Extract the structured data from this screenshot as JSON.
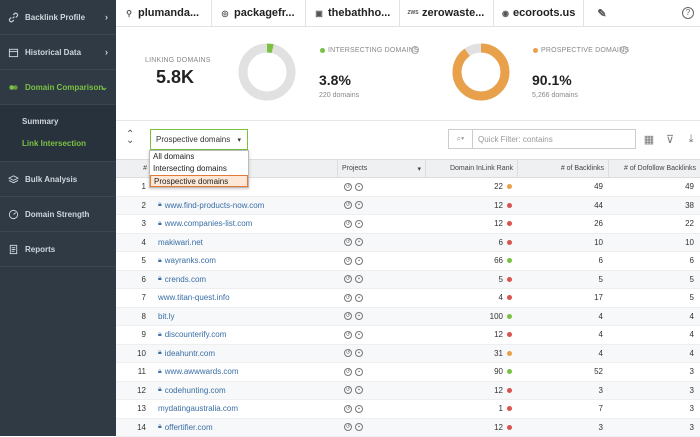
{
  "sidebar": {
    "items": [
      {
        "label": "Backlink Profile",
        "icon": "link-icon"
      },
      {
        "label": "Historical Data",
        "icon": "calendar-icon"
      },
      {
        "label": "Domain Comparison",
        "icon": "compare-icon"
      },
      {
        "label": "Bulk Analysis",
        "icon": "layers-icon"
      },
      {
        "label": "Domain Strength",
        "icon": "gauge-icon"
      },
      {
        "label": "Reports",
        "icon": "document-icon"
      }
    ],
    "sub_items": [
      {
        "label": "Summary"
      },
      {
        "label": "Link Intersection"
      }
    ]
  },
  "tabs": [
    {
      "label": "plumanda..."
    },
    {
      "label": "packagefr..."
    },
    {
      "label": "thebathho..."
    },
    {
      "label": "zerowaste..."
    },
    {
      "label": "ecoroots.us"
    }
  ],
  "stats": {
    "linking_label": "LINKING DOMAINS",
    "linking_value": "5.8K",
    "intersect_label": "INTERSECTING DOMAINS",
    "intersect_value": "3.8%",
    "intersect_sub": "220 domains",
    "prospective_label": "PROSPECTIVE DOMAINS",
    "prospective_value": "90.1%",
    "prospective_sub": "5,266 domains",
    "intersect_fraction": 0.038,
    "prospective_fraction": 0.901,
    "colors": {
      "green": "#7ac143",
      "orange": "#e8a04a",
      "gray": "#e1e1e1"
    }
  },
  "toolbar": {
    "filter_value": "Prospective domains",
    "quick_filter_placeholder": "Quick Filter: contains"
  },
  "dropdown": {
    "options": [
      "All domains",
      "Intersecting domains",
      "Prospective domains"
    ]
  },
  "table": {
    "headers": {
      "num": "#",
      "projects": "Projects",
      "rank": "Domain InLink Rank",
      "backlinks": "# of Backlinks",
      "dofollow": "# of Dofollow Backlinks"
    },
    "rows": [
      {
        "n": "1",
        "domain": "",
        "lock": false,
        "rank": "22",
        "dot": "#e8a04a",
        "bl": "49",
        "df": "49"
      },
      {
        "n": "2",
        "domain": "www.find-products-now.com",
        "lock": true,
        "rank": "12",
        "dot": "#d9534f",
        "bl": "44",
        "df": "38"
      },
      {
        "n": "3",
        "domain": "www.companies-list.com",
        "lock": true,
        "rank": "12",
        "dot": "#d9534f",
        "bl": "26",
        "df": "22"
      },
      {
        "n": "4",
        "domain": "makiwari.net",
        "lock": false,
        "rank": "6",
        "dot": "#d9534f",
        "bl": "10",
        "df": "10"
      },
      {
        "n": "5",
        "domain": "wayranks.com",
        "lock": true,
        "rank": "66",
        "dot": "#7ac143",
        "bl": "6",
        "df": "6"
      },
      {
        "n": "6",
        "domain": "crends.com",
        "lock": true,
        "rank": "5",
        "dot": "#d9534f",
        "bl": "5",
        "df": "5"
      },
      {
        "n": "7",
        "domain": "www.titan-quest.info",
        "lock": false,
        "rank": "4",
        "dot": "#d9534f",
        "bl": "17",
        "df": "5"
      },
      {
        "n": "8",
        "domain": "bit.ly",
        "lock": false,
        "rank": "100",
        "dot": "#7ac143",
        "bl": "4",
        "df": "4"
      },
      {
        "n": "9",
        "domain": "discounterify.com",
        "lock": true,
        "rank": "12",
        "dot": "#d9534f",
        "bl": "4",
        "df": "4"
      },
      {
        "n": "10",
        "domain": "ideahuntr.com",
        "lock": true,
        "rank": "31",
        "dot": "#e8a04a",
        "bl": "4",
        "df": "4"
      },
      {
        "n": "11",
        "domain": "www.awwwards.com",
        "lock": true,
        "rank": "90",
        "dot": "#7ac143",
        "bl": "52",
        "df": "3"
      },
      {
        "n": "12",
        "domain": "codehunting.com",
        "lock": true,
        "rank": "12",
        "dot": "#d9534f",
        "bl": "3",
        "df": "3"
      },
      {
        "n": "13",
        "domain": "mydatingaustralia.com",
        "lock": false,
        "rank": "1",
        "dot": "#d9534f",
        "bl": "7",
        "df": "3"
      },
      {
        "n": "14",
        "domain": "offertifier.com",
        "lock": true,
        "rank": "12",
        "dot": "#d9534f",
        "bl": "3",
        "df": "3"
      }
    ]
  }
}
